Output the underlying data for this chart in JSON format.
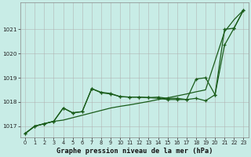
{
  "title": "Graphe pression niveau de la mer (hPa)",
  "bg_color": "#c8ece6",
  "grid_color": "#b0b0b0",
  "line_color": "#1a5c1a",
  "xlim_min": -0.5,
  "xlim_max": 23.5,
  "ylim_min": 1016.55,
  "ylim_max": 1022.1,
  "yticks": [
    1017,
    1018,
    1019,
    1020,
    1021
  ],
  "xticks": [
    0,
    1,
    2,
    3,
    4,
    5,
    6,
    7,
    8,
    9,
    10,
    11,
    12,
    13,
    14,
    15,
    16,
    17,
    18,
    19,
    20,
    21,
    22,
    23
  ],
  "line1_y": [
    1016.7,
    1017.0,
    1017.1,
    1017.2,
    1017.25,
    1017.35,
    1017.45,
    1017.55,
    1017.65,
    1017.75,
    1017.82,
    1017.88,
    1017.95,
    1018.02,
    1018.1,
    1018.17,
    1018.25,
    1018.33,
    1018.42,
    1018.5,
    1019.7,
    1020.9,
    1021.4,
    1021.8
  ],
  "line2_y": [
    1016.7,
    1017.0,
    1017.1,
    1017.2,
    1017.75,
    1017.55,
    1017.6,
    1018.55,
    1018.4,
    1018.35,
    1018.22,
    1018.2,
    1018.2,
    1018.18,
    1018.2,
    1018.15,
    1018.15,
    1018.1,
    1018.15,
    1018.05,
    1018.3,
    1020.35,
    1021.05,
    1021.8
  ],
  "line3_y": [
    1016.7,
    1017.0,
    1017.1,
    1017.2,
    1017.75,
    1017.55,
    1017.6,
    1018.55,
    1018.38,
    1018.33,
    1018.22,
    1018.2,
    1018.2,
    1018.18,
    1018.15,
    1018.1,
    1018.1,
    1018.1,
    1018.95,
    1019.0,
    1018.3,
    1021.0,
    1021.05,
    1021.8
  ]
}
